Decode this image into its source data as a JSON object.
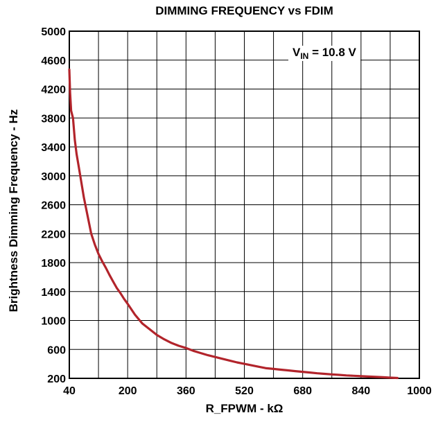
{
  "chart_data": {
    "type": "line",
    "title": "DIMMING FREQUENCY vs FDIM",
    "xlabel": "R_FPWM - kΩ",
    "ylabel": "Brightness Dimming Frequency - Hz",
    "xlim": [
      40,
      1000
    ],
    "ylim": [
      200,
      5000
    ],
    "x_ticks": [
      40,
      200,
      360,
      520,
      680,
      840,
      1000
    ],
    "y_ticks": [
      200,
      600,
      1000,
      1400,
      1800,
      2200,
      2600,
      3000,
      3400,
      3800,
      4200,
      4600,
      5000
    ],
    "x_grid": [
      40,
      120,
      200,
      280,
      360,
      440,
      520,
      600,
      680,
      760,
      840,
      920,
      1000
    ],
    "grid": true,
    "line_color": "#b2242b",
    "annotation": {
      "prefix": "V",
      "sub": "IN",
      "suffix": " = 10.8 V"
    },
    "series": [
      {
        "x": [
          40,
          42,
          45,
          50,
          55,
          60,
          65,
          70,
          75,
          80,
          90,
          100,
          110,
          120,
          130,
          140,
          150,
          160,
          170,
          180,
          190,
          200,
          220,
          240,
          260,
          280,
          300,
          320,
          340,
          360,
          380,
          400,
          420,
          440,
          460,
          480,
          500,
          520,
          540,
          560,
          580,
          600,
          620,
          640,
          660,
          680,
          700,
          720,
          740,
          760,
          780,
          800,
          820,
          840,
          860,
          880,
          900,
          920,
          940
        ],
        "y": [
          4470,
          4150,
          3900,
          3800,
          3500,
          3300,
          3150,
          3000,
          2850,
          2700,
          2450,
          2200,
          2050,
          1920,
          1820,
          1730,
          1630,
          1540,
          1450,
          1380,
          1300,
          1230,
          1080,
          960,
          880,
          800,
          740,
          690,
          650,
          620,
          580,
          550,
          520,
          495,
          470,
          445,
          420,
          400,
          380,
          360,
          340,
          330,
          320,
          310,
          300,
          290,
          280,
          270,
          262,
          255,
          248,
          240,
          235,
          230,
          225,
          220,
          215,
          210,
          205
        ]
      }
    ]
  }
}
